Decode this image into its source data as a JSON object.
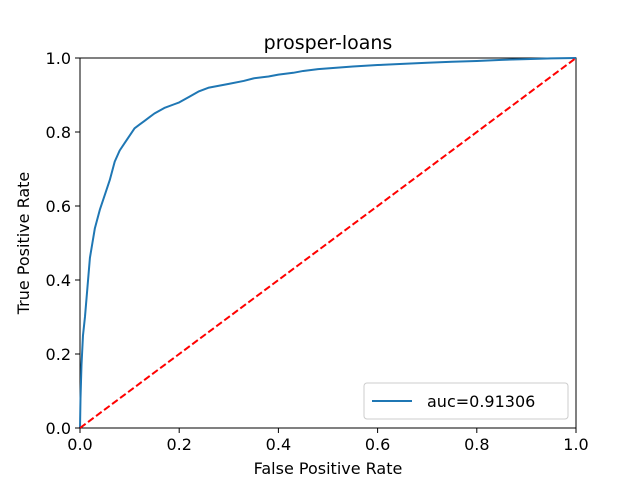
{
  "chart_data": {
    "type": "line",
    "title": "prosper-loans",
    "xlabel": "False Positive Rate",
    "ylabel": "True Positive Rate",
    "xlim": [
      0.0,
      1.0
    ],
    "ylim": [
      0.0,
      1.0
    ],
    "xticks": [
      "0.0",
      "0.2",
      "0.4",
      "0.6",
      "0.8",
      "1.0"
    ],
    "yticks": [
      "0.0",
      "0.2",
      "0.4",
      "0.6",
      "0.8",
      "1.0"
    ],
    "grid": false,
    "legend_position": "lower-right",
    "series": [
      {
        "name": "auc=0.91306",
        "color": "#1f77b4",
        "style": "solid",
        "x": [
          0.0,
          0.001,
          0.003,
          0.006,
          0.01,
          0.015,
          0.02,
          0.025,
          0.03,
          0.04,
          0.05,
          0.06,
          0.07,
          0.08,
          0.09,
          0.1,
          0.11,
          0.12,
          0.13,
          0.14,
          0.15,
          0.17,
          0.19,
          0.2,
          0.22,
          0.24,
          0.26,
          0.28,
          0.3,
          0.33,
          0.35,
          0.38,
          0.4,
          0.43,
          0.45,
          0.48,
          0.5,
          0.55,
          0.6,
          0.65,
          0.7,
          0.75,
          0.8,
          0.85,
          0.9,
          0.95,
          1.0
        ],
        "y": [
          0.0,
          0.08,
          0.17,
          0.25,
          0.3,
          0.38,
          0.46,
          0.5,
          0.54,
          0.59,
          0.63,
          0.67,
          0.72,
          0.75,
          0.77,
          0.79,
          0.81,
          0.82,
          0.83,
          0.84,
          0.85,
          0.865,
          0.875,
          0.88,
          0.895,
          0.91,
          0.92,
          0.925,
          0.93,
          0.938,
          0.945,
          0.95,
          0.955,
          0.96,
          0.965,
          0.97,
          0.972,
          0.977,
          0.981,
          0.984,
          0.987,
          0.99,
          0.992,
          0.995,
          0.997,
          0.999,
          1.0
        ]
      },
      {
        "name": "",
        "color": "#ff0000",
        "style": "dashed",
        "x": [
          0.0,
          1.0
        ],
        "y": [
          0.0,
          1.0
        ]
      }
    ]
  }
}
